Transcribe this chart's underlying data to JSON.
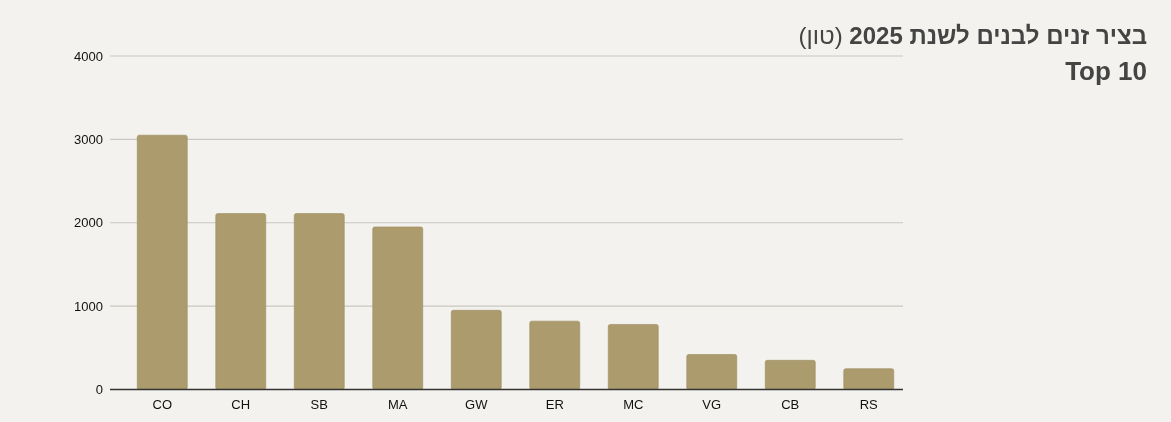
{
  "chart_data": {
    "type": "bar",
    "title": "**בציר זנים לבנים לשנת 2025** (טון)",
    "subtitle": "Top 10",
    "categories": [
      "CO",
      "CH",
      "SB",
      "MA",
      "GW",
      "ER",
      "MC",
      "VG",
      "CB",
      "RS"
    ],
    "values": [
      3050,
      2110,
      2110,
      1950,
      950,
      820,
      780,
      420,
      350,
      250
    ],
    "color": "#ab9b6d",
    "ylim": [
      0,
      4000
    ],
    "yticks": [
      0,
      1000,
      2000,
      3000,
      4000
    ],
    "grid": "y"
  }
}
